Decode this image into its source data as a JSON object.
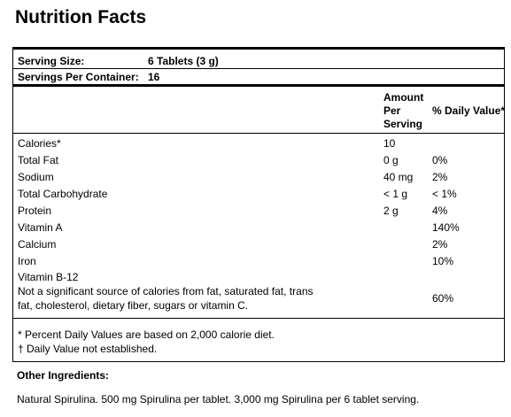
{
  "title": "Nutrition Facts",
  "serving": {
    "size_label": "Serving Size:",
    "size_value": "6 Tablets (3 g)",
    "per_container_label": "Servings Per Container:",
    "per_container_value": "16"
  },
  "header": {
    "amount_line1": "Amount",
    "amount_line2": "Per",
    "amount_line3": "Serving",
    "daily_value": "% Daily Value*"
  },
  "rows": [
    {
      "name": "Calories*",
      "amount": "10",
      "dv": ""
    },
    {
      "name": "Total Fat",
      "amount": "0 g",
      "dv": "0%"
    },
    {
      "name": "Sodium",
      "amount": "40 mg",
      "dv": "2%"
    },
    {
      "name": "Total Carbohydrate",
      "amount": "< 1 g",
      "dv": "< 1%"
    },
    {
      "name": "Protein",
      "amount": "2 g",
      "dv": "4%"
    },
    {
      "name": "Vitamin A",
      "amount": "",
      "dv": "140%"
    },
    {
      "name": "Calcium",
      "amount": "",
      "dv": "2%"
    },
    {
      "name": "Iron",
      "amount": "",
      "dv": "10%"
    }
  ],
  "b12": {
    "name": "Vitamin B-12",
    "note_line1": "Not a significant source of calories from fat, saturated fat, trans",
    "note_line2": "fat, cholesterol, dietary fiber, sugars or vitamin C.",
    "dv": "60%"
  },
  "footnotes": {
    "line1": "* Percent Daily Values are based on 2,000 calorie diet.",
    "line2": "† Daily Value not established."
  },
  "ingredients": {
    "label": "Other Ingredients:",
    "text": "Natural Spirulina. 500 mg Spirulina per tablet. 3,000 mg Spirulina per 6 tablet serving."
  }
}
